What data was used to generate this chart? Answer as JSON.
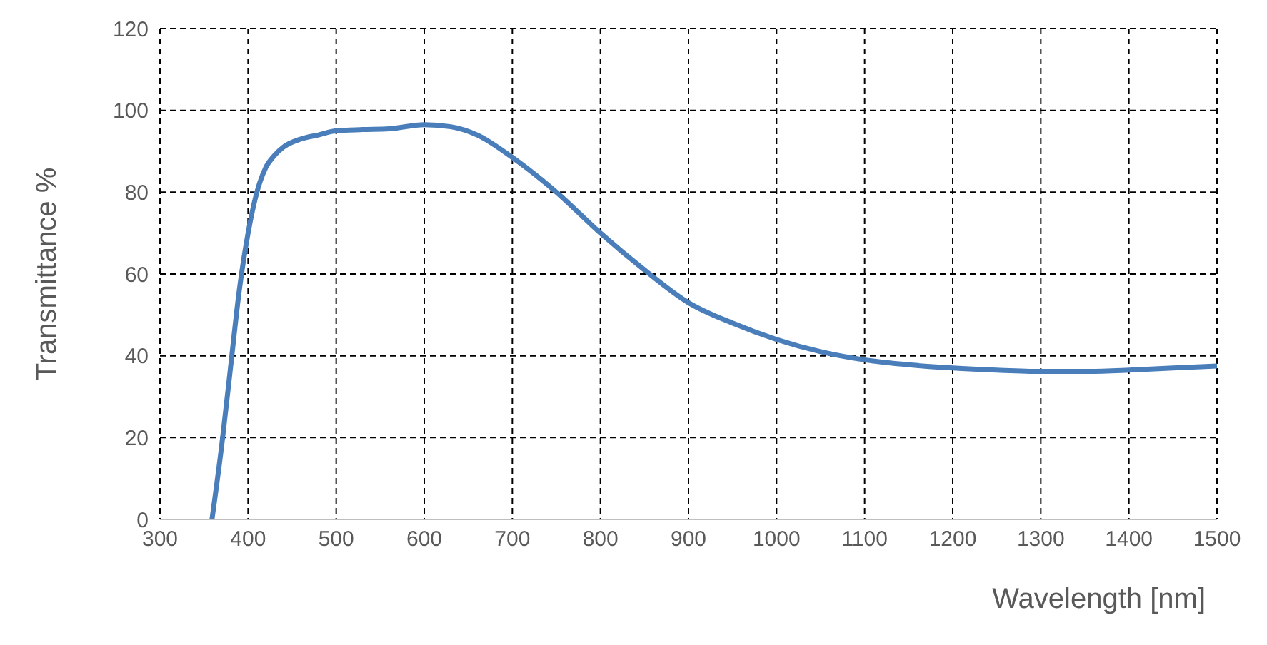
{
  "chart_data": {
    "type": "line",
    "xlabel": "Wavelength [nm]",
    "ylabel": "Transmittance %",
    "x": [
      359,
      370,
      380,
      390,
      400,
      410,
      420,
      430,
      440,
      460,
      480,
      500,
      530,
      560,
      600,
      630,
      660,
      700,
      750,
      800,
      850,
      900,
      950,
      1000,
      1050,
      1100,
      1150,
      1200,
      1250,
      1300,
      1350,
      1400,
      1450,
      1500
    ],
    "series": [
      {
        "color": "#4a7ebb",
        "values": [
          0,
          18,
          37,
          56,
          70,
          80,
          86,
          89,
          91,
          93,
          94,
          95,
          95.3,
          95.5,
          96.5,
          96,
          94,
          88.5,
          80,
          70,
          61,
          53,
          48,
          44,
          41,
          39,
          37.8,
          37,
          36.5,
          36.2,
          36.2,
          36.5,
          37,
          37.5
        ]
      }
    ],
    "xlim": [
      300,
      1500
    ],
    "xticks": [
      300,
      400,
      500,
      600,
      700,
      800,
      900,
      1000,
      1100,
      1200,
      1300,
      1400,
      1500
    ],
    "ylim": [
      0,
      120
    ],
    "yticks": [
      0,
      20,
      40,
      60,
      80,
      100,
      120
    ],
    "grid": true,
    "marker": "none",
    "line_style": "solid"
  }
}
